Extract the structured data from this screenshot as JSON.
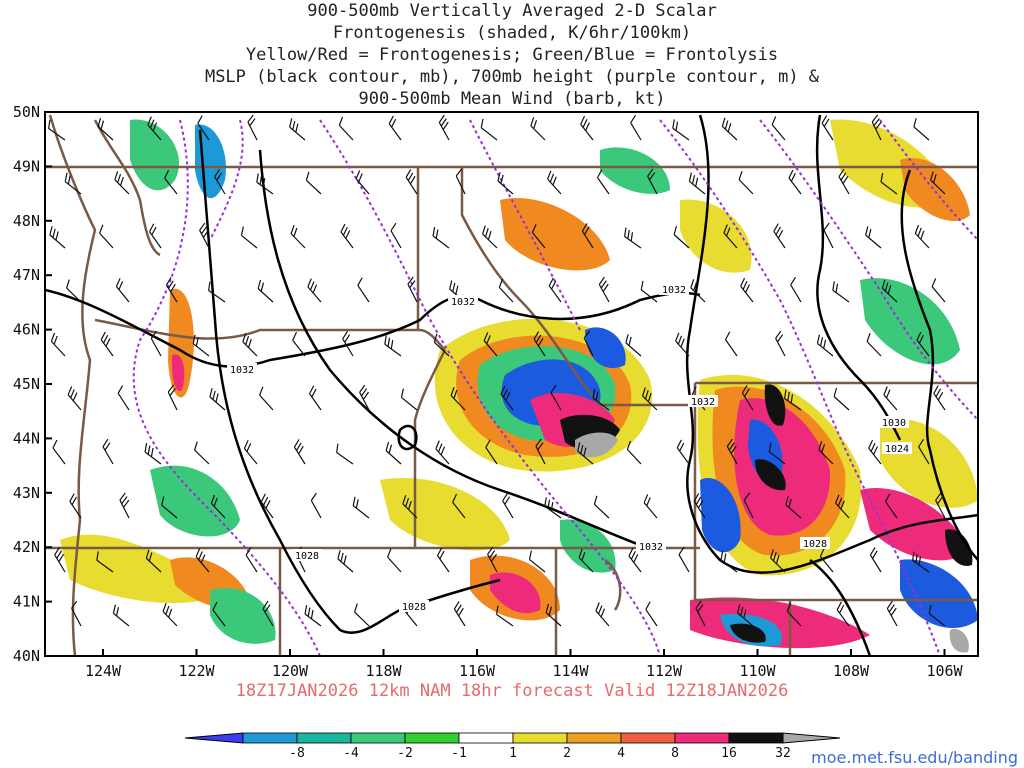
{
  "title_lines": [
    "900-500mb Vertically Averaged 2-D Scalar",
    "Frontogenesis (shaded, K/6hr/100km)",
    "Yellow/Red = Frontogenesis;  Green/Blue = Frontolysis",
    "MSLP (black contour, mb), 700mb height (purple contour, m) &",
    "900-500mb Mean Wind (barb, kt)"
  ],
  "lat_labels": [
    "50N",
    "49N",
    "48N",
    "47N",
    "46N",
    "45N",
    "44N",
    "43N",
    "42N",
    "41N",
    "40N"
  ],
  "lon_labels": [
    "124W",
    "122W",
    "120W",
    "118W",
    "116W",
    "114W",
    "112W",
    "110W",
    "108W",
    "106W"
  ],
  "forecast_line": "18Z17JAN2026 12km NAM 18hr forecast Valid 12Z18JAN2026",
  "credit": "moe.met.fsu.edu/banding",
  "contour_labels": [
    "1032",
    "1032",
    "1032",
    "1032",
    "1028",
    "1028",
    "1028",
    "1032",
    "1030",
    "1024"
  ],
  "colorbar": {
    "labels": [
      "-8",
      "-4",
      "-2",
      "-1",
      "1",
      "2",
      "4",
      "8",
      "16",
      "32"
    ],
    "colors": [
      "#3b3bf0",
      "#1c9ad8",
      "#18b8a0",
      "#3cc87a",
      "#30d030",
      "#ffffff",
      "#e8dc30",
      "#f0a020",
      "#f06040",
      "#ee2a7a",
      "#111111",
      "#a8a8a8"
    ]
  },
  "colors": {
    "frontolysis_weak": "#3cc87a",
    "frontolysis_strong": "#1c5ae0",
    "frontogenesis_weak": "#e8dc30",
    "frontogenesis_mid": "#f08a20",
    "frontogenesis_strong": "#ee2a7a",
    "extreme": "#111111",
    "mslp_contour": "#000000",
    "height_contour": "#9a2ed8",
    "borders": "#7a5a44"
  }
}
